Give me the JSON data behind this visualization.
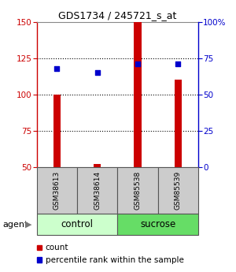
{
  "title": "GDS1734 / 245721_s_at",
  "samples": [
    "GSM38613",
    "GSM38614",
    "GSM85538",
    "GSM85539"
  ],
  "count_values": [
    100,
    52,
    150,
    110
  ],
  "percentile_values": [
    68,
    65,
    71,
    71
  ],
  "ylim_left": [
    50,
    150
  ],
  "ylim_right": [
    0,
    100
  ],
  "yticks_left": [
    50,
    75,
    100,
    125,
    150
  ],
  "yticks_right": [
    0,
    25,
    50,
    75,
    100
  ],
  "ytick_right_labels": [
    "0",
    "25",
    "50",
    "75",
    "100%"
  ],
  "bar_color": "#cc0000",
  "dot_color": "#0000cc",
  "control_color": "#ccffcc",
  "sucrose_color": "#66dd66",
  "sample_bg_color": "#cccccc",
  "bar_width": 0.18,
  "legend_count_label": "count",
  "legend_pct_label": "percentile rank within the sample"
}
